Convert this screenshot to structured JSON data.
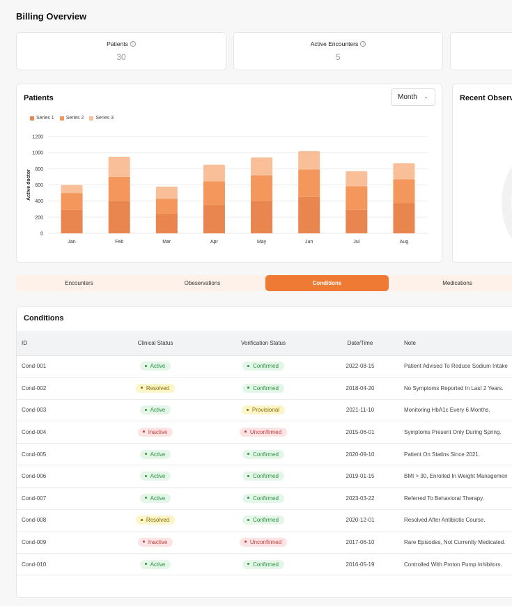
{
  "page": {
    "title": "Billing Overview"
  },
  "stats": [
    {
      "label": "Patients",
      "value": "30"
    },
    {
      "label": "Active Encounters",
      "value": "5"
    }
  ],
  "chart_panel": {
    "title": "Patients",
    "period_select": "Month"
  },
  "chart_data": {
    "type": "bar",
    "stacked": true,
    "categories": [
      "Jan",
      "Feb",
      "Mar",
      "Apr",
      "May",
      "Jun",
      "Jul",
      "Aug"
    ],
    "series": [
      {
        "name": "Series 1",
        "color": "#e9854f",
        "values": [
          295,
          400,
          245,
          350,
          400,
          450,
          295,
          375
        ]
      },
      {
        "name": "Series 2",
        "color": "#f4975c",
        "values": [
          205,
          300,
          185,
          295,
          320,
          340,
          290,
          295
        ]
      },
      {
        "name": "Series 3",
        "color": "#f8bf98",
        "values": [
          100,
          250,
          150,
          205,
          220,
          230,
          185,
          200
        ]
      }
    ],
    "ylabel": "Active doctor",
    "ylim": [
      0,
      1200
    ],
    "yticks": [
      0,
      200,
      400,
      600,
      800,
      1000,
      1200
    ],
    "grid": true,
    "legend_position": "top-left"
  },
  "recent_panel": {
    "title": "Recent Observa"
  },
  "tabs": [
    {
      "label": "Encounters",
      "active": false
    },
    {
      "label": "Obeservations",
      "active": false
    },
    {
      "label": "Conditions",
      "active": true
    },
    {
      "label": "Medications",
      "active": false
    }
  ],
  "conditions": {
    "title": "Conditions",
    "columns": [
      "ID",
      "Clinical Status",
      "Verification Status",
      "Date/Time",
      "Note"
    ],
    "rows": [
      {
        "id": "Cond-001",
        "clinical": "Active",
        "clinical_color": "green",
        "verification": "Confirmed",
        "verification_color": "green",
        "date": "2022-08-15",
        "note": "Patient Advised To Reduce Sodium Intake"
      },
      {
        "id": "Cond-002",
        "clinical": "Resolved",
        "clinical_color": "yellow",
        "verification": "Confirmed",
        "verification_color": "green",
        "date": "2018-04-20",
        "note": "No Symptoms Reported In Last 2 Years."
      },
      {
        "id": "Cond-003",
        "clinical": "Active",
        "clinical_color": "green",
        "verification": "Provisional",
        "verification_color": "yellow",
        "date": "2021-11-10",
        "note": "Monitoring HbA1c Every 6 Months."
      },
      {
        "id": "Cond-004",
        "clinical": "Inactive",
        "clinical_color": "red",
        "verification": "Unconfirmed",
        "verification_color": "red",
        "date": "2015-06-01",
        "note": "Symptoms Present Only During Spring."
      },
      {
        "id": "Cond-005",
        "clinical": "Active",
        "clinical_color": "green",
        "verification": "Confirmed",
        "verification_color": "green",
        "date": "2020-09-10",
        "note": "Patient On Statins Since 2021."
      },
      {
        "id": "Cond-006",
        "clinical": "Active",
        "clinical_color": "green",
        "verification": "Confirmed",
        "verification_color": "green",
        "date": "2019-01-15",
        "note": "BMI > 30, Enrolled In Weight Managemen"
      },
      {
        "id": "Cond-007",
        "clinical": "Active",
        "clinical_color": "green",
        "verification": "Confirmed",
        "verification_color": "green",
        "date": "2023-03-22",
        "note": "Referred To Behavioral Therapy."
      },
      {
        "id": "Cond-008",
        "clinical": "Resolved",
        "clinical_color": "yellow",
        "verification": "Confirmed",
        "verification_color": "green",
        "date": "2020-12-01",
        "note": "Resolved After Antibiotic Course."
      },
      {
        "id": "Cond-009",
        "clinical": "Inactive",
        "clinical_color": "red",
        "verification": "Unconfirmed",
        "verification_color": "red",
        "date": "2017-06-10",
        "note": "Rare Episodes, Not Currently Medicated."
      },
      {
        "id": "Cond-010",
        "clinical": "Active",
        "clinical_color": "green",
        "verification": "Confirmed",
        "verification_color": "green",
        "date": "2016-05-19",
        "note": "Controlled With Proton Pump Inhibitors."
      }
    ]
  }
}
